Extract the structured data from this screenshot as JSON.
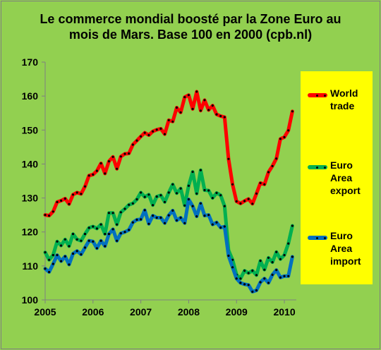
{
  "title_lines": [
    "Le commerce mondial boosté par la Zone Euro au",
    "mois de Mars. Base 100 en 2000 (cpb.nl)"
  ],
  "colors": {
    "world": "#ff0000",
    "export": "#00b050",
    "import": "#0070c0",
    "background": "#92d050",
    "legend_bg": "#ffff00"
  },
  "chart_data": {
    "type": "line",
    "title": "Le commerce mondial boosté par la Zone Euro au mois de Mars. Base 100 en 2000 (cpb.nl)",
    "xlabel": "",
    "ylabel": "",
    "x_ticks": [
      "2005",
      "2006",
      "2007",
      "2008",
      "2009",
      "2010"
    ],
    "y_ticks": [
      "100",
      "110",
      "120",
      "130",
      "140",
      "150",
      "160",
      "170"
    ],
    "ylim": [
      100,
      170
    ],
    "xlim": [
      2005,
      2010.25
    ],
    "grid": false,
    "legend_position": "right",
    "x": [
      2005.0,
      2005.083,
      2005.167,
      2005.25,
      2005.333,
      2005.417,
      2005.5,
      2005.583,
      2005.667,
      2005.75,
      2005.833,
      2005.917,
      2006.0,
      2006.083,
      2006.167,
      2006.25,
      2006.333,
      2006.417,
      2006.5,
      2006.583,
      2006.667,
      2006.75,
      2006.833,
      2006.917,
      2007.0,
      2007.083,
      2007.167,
      2007.25,
      2007.333,
      2007.417,
      2007.5,
      2007.583,
      2007.667,
      2007.75,
      2007.833,
      2007.917,
      2008.0,
      2008.083,
      2008.167,
      2008.25,
      2008.333,
      2008.417,
      2008.5,
      2008.583,
      2008.667,
      2008.75,
      2008.833,
      2008.917,
      2009.0,
      2009.083,
      2009.167,
      2009.25,
      2009.333,
      2009.417,
      2009.5,
      2009.583,
      2009.667,
      2009.75,
      2009.833,
      2009.917,
      2010.0,
      2010.083,
      2010.167
    ],
    "series": [
      {
        "name": "World trade",
        "color": "#ff0000",
        "values": [
          125,
          124.8,
          126,
          128.8,
          129.2,
          129.8,
          128.2,
          131,
          131.6,
          131.2,
          133.4,
          136.6,
          136.9,
          138,
          140.2,
          137.2,
          140.8,
          142.1,
          138.6,
          142.2,
          143,
          143.1,
          145.7,
          146.9,
          148.1,
          149.2,
          148.5,
          149.6,
          150.1,
          150.4,
          148.8,
          152.9,
          152.5,
          156.6,
          155.2,
          159.7,
          160.3,
          156.2,
          161.3,
          155.7,
          158.8,
          155.9,
          157.2,
          154.6,
          154.1,
          153.8,
          141.5,
          134,
          129,
          128.4,
          129.1,
          129.7,
          128.3,
          131.3,
          134.4,
          134,
          137.6,
          139.4,
          141.6,
          147.4,
          147.9,
          149.9,
          155.5
        ]
      },
      {
        "name": "Euro Area export",
        "color": "#00b050",
        "values": [
          114,
          111.8,
          113.2,
          117.2,
          116,
          117.8,
          115.8,
          119.4,
          117.8,
          117.4,
          119.4,
          121.2,
          121.6,
          121,
          122.2,
          119.4,
          125.6,
          125.6,
          122.2,
          125.8,
          126.8,
          128,
          128.4,
          129.6,
          131.6,
          130.3,
          131,
          127.9,
          130.4,
          130.8,
          128.8,
          131.6,
          134,
          131.4,
          132.8,
          127.8,
          133.6,
          137.7,
          131.3,
          138.2,
          132.3,
          132.2,
          130,
          131.5,
          130.8,
          127.6,
          114.6,
          111.8,
          107.4,
          106.3,
          108.6,
          107.9,
          108.6,
          107.3,
          111.5,
          108.9,
          112.4,
          111.1,
          114.1,
          112,
          113.2,
          116.6,
          121.8
        ]
      },
      {
        "name": "Euro Area import",
        "color": "#0070c0",
        "values": [
          109.2,
          108.2,
          110.6,
          113.2,
          111.4,
          112.8,
          110.4,
          113.6,
          114.4,
          113.4,
          115.4,
          117.4,
          117.2,
          115.2,
          117.4,
          115.8,
          119.4,
          120.8,
          117.4,
          119.6,
          120,
          120.6,
          122.8,
          123.6,
          123.7,
          126.4,
          122.4,
          124.8,
          124.2,
          124.2,
          122.6,
          124.9,
          126.3,
          123.4,
          124.2,
          122.6,
          129.6,
          127.6,
          124.6,
          128.4,
          124.8,
          125,
          122.2,
          122.8,
          121.3,
          121.6,
          113,
          109.6,
          106.3,
          105,
          104.6,
          104.4,
          102.4,
          102.8,
          105.2,
          106.3,
          105,
          107.4,
          108.8,
          106.6,
          107,
          107,
          112.7
        ]
      }
    ]
  },
  "legend": [
    {
      "key": "world",
      "label": "World\ntrade"
    },
    {
      "key": "export",
      "label": "Euro\nArea\nexport"
    },
    {
      "key": "import",
      "label": "Euro\nArea\nimport"
    }
  ]
}
